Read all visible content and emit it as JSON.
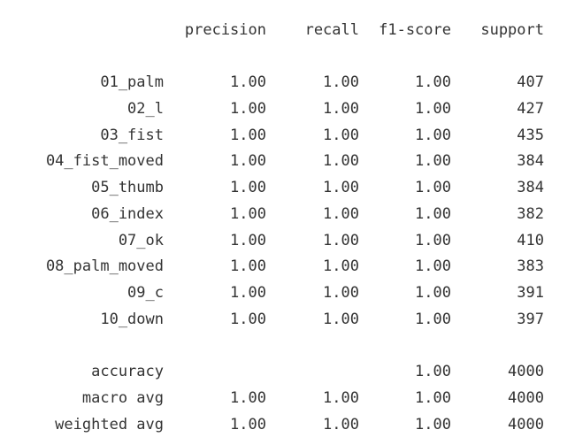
{
  "columns": [
    "precision",
    "recall",
    "f1-score",
    "support"
  ],
  "classes": [
    {
      "label": "01_palm",
      "precision": "1.00",
      "recall": "1.00",
      "f1": "1.00",
      "support": "407"
    },
    {
      "label": "02_l",
      "precision": "1.00",
      "recall": "1.00",
      "f1": "1.00",
      "support": "427"
    },
    {
      "label": "03_fist",
      "precision": "1.00",
      "recall": "1.00",
      "f1": "1.00",
      "support": "435"
    },
    {
      "label": "04_fist_moved",
      "precision": "1.00",
      "recall": "1.00",
      "f1": "1.00",
      "support": "384"
    },
    {
      "label": "05_thumb",
      "precision": "1.00",
      "recall": "1.00",
      "f1": "1.00",
      "support": "384"
    },
    {
      "label": "06_index",
      "precision": "1.00",
      "recall": "1.00",
      "f1": "1.00",
      "support": "382"
    },
    {
      "label": "07_ok",
      "precision": "1.00",
      "recall": "1.00",
      "f1": "1.00",
      "support": "410"
    },
    {
      "label": "08_palm_moved",
      "precision": "1.00",
      "recall": "1.00",
      "f1": "1.00",
      "support": "383"
    },
    {
      "label": "09_c",
      "precision": "1.00",
      "recall": "1.00",
      "f1": "1.00",
      "support": "391"
    },
    {
      "label": "10_down",
      "precision": "1.00",
      "recall": "1.00",
      "f1": "1.00",
      "support": "397"
    }
  ],
  "summary": [
    {
      "label": "accuracy",
      "precision": "",
      "recall": "",
      "f1": "1.00",
      "support": "4000"
    },
    {
      "label": "macro avg",
      "precision": "1.00",
      "recall": "1.00",
      "f1": "1.00",
      "support": "4000"
    },
    {
      "label": "weighted avg",
      "precision": "1.00",
      "recall": "1.00",
      "f1": "1.00",
      "support": "4000"
    }
  ]
}
